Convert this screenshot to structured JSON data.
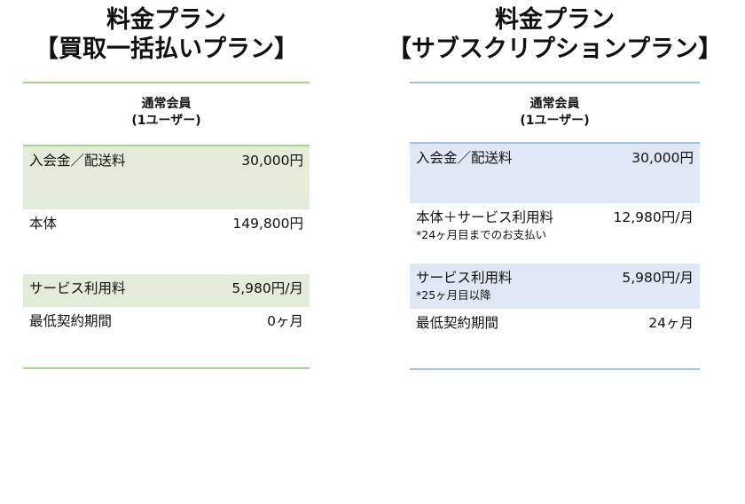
{
  "plans": [
    {
      "title_line1": "料金プラン",
      "title_line2": "【買取一括払いプラン】",
      "header_line1": "通常会員",
      "header_line2": "(1ユーザー)",
      "accent_color": "#a9d08e",
      "rows": [
        {
          "label": "入会金／配送料",
          "value": "30,000円"
        },
        {
          "label": "本体",
          "value": "149,800円"
        },
        {
          "label": "サービス利用料",
          "value": "5,980円/月"
        },
        {
          "label": "最低契約期間",
          "value": "0ヶ月"
        }
      ]
    },
    {
      "title_line1": "料金プラン",
      "title_line2": "【サブスクリプションプラン】",
      "header_line1": "通常会員",
      "header_line2": "(1ユーザー)",
      "accent_color": "#9dc3e6",
      "rows": [
        {
          "label": "入会金／配送料",
          "value": "30,000円"
        },
        {
          "label": "本体＋サービス利用料",
          "value": "12,980円/月",
          "note": "*24ヶ月目までのお支払い"
        },
        {
          "label": "サービス利用料",
          "value": "5,980円/月",
          "note": "*25ヶ月目以降"
        },
        {
          "label": "最低契約期間",
          "value": "24ヶ月"
        }
      ]
    }
  ]
}
